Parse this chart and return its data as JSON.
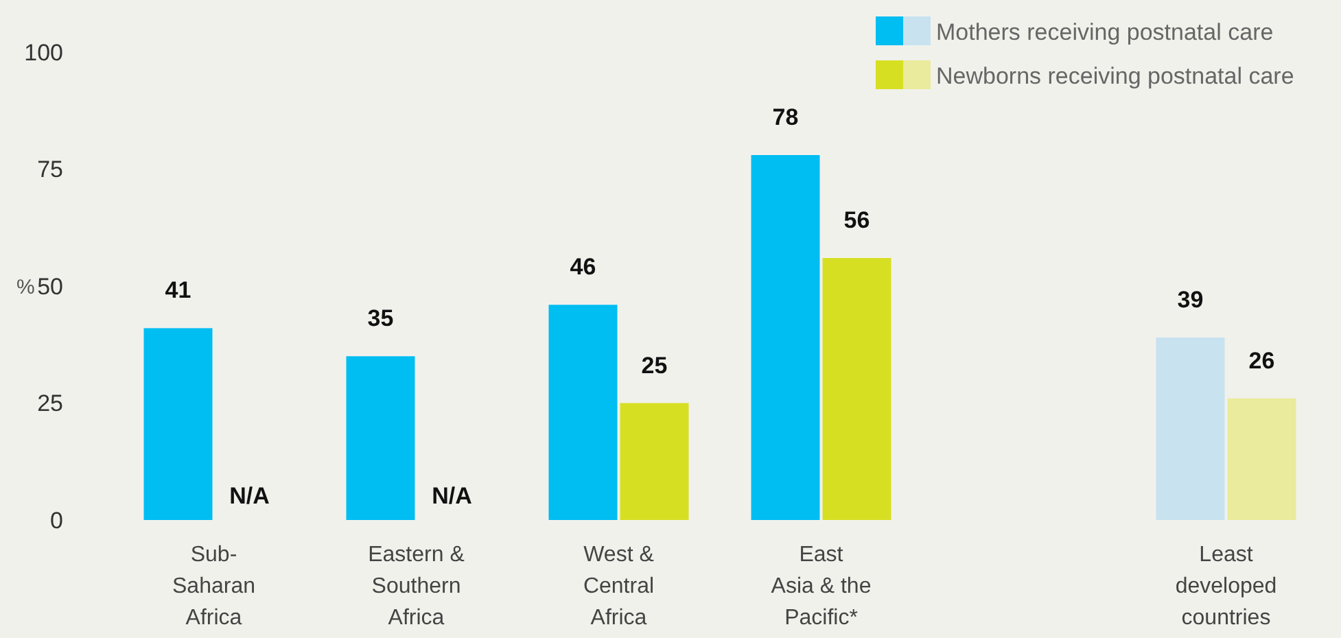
{
  "chart_data": {
    "type": "bar",
    "categories": [
      "Sub-\nSaharan\nAfrica",
      "Eastern &\nSouthern\nAfrica",
      "West &\nCentral\nAfrica",
      "East\nAsia & the\nPacific*",
      null,
      "Least\ndeveloped\ncountries"
    ],
    "series": [
      {
        "name": "Mothers receiving postnatal care",
        "color": "#00bdf2",
        "colors": [
          "#00bdf2",
          "#00bdf2",
          "#00bdf2",
          "#00bdf2",
          null,
          "#c8e2ef"
        ],
        "values": [
          41,
          35,
          46,
          78,
          null,
          39
        ],
        "value_labels": [
          "41",
          "35",
          "46",
          "78",
          null,
          "39"
        ]
      },
      {
        "name": "Newborns receiving postnatal care",
        "color": "#d7df23",
        "colors": [
          "#d7df23",
          "#d7df23",
          "#d7df23",
          "#d7df23",
          null,
          "#eaeb9c"
        ],
        "values": [
          null,
          null,
          25,
          56,
          null,
          26
        ],
        "value_labels": [
          "N/A",
          "N/A",
          "25",
          "56",
          null,
          "26"
        ]
      }
    ],
    "ylabel": "%",
    "ylim": [
      0,
      100
    ],
    "yticks": [
      0,
      25,
      50,
      75,
      100
    ],
    "grid": false,
    "legend": "top right"
  }
}
